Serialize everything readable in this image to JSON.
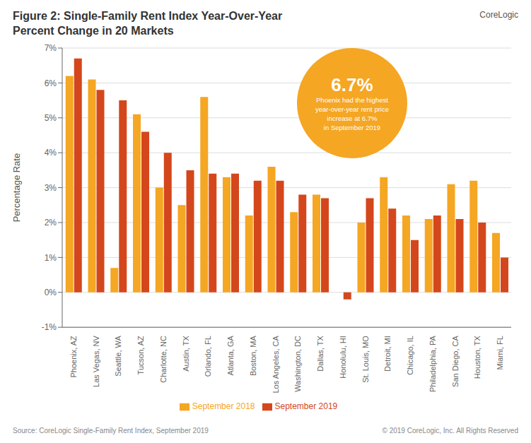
{
  "chart_data": {
    "type": "bar",
    "title": "Figure 2: Single-Family Rent Index Year-Over-Year",
    "subtitle": "Percent Change in 20 Markets",
    "y_label": "Percentage Rate",
    "categories": [
      "Phoenix, AZ",
      "Las Vegas, NV",
      "Seattle, WA",
      "Tucson, AZ",
      "Charlotte, NC",
      "Austin, TX",
      "Orlando, FL",
      "Atlanta, GA",
      "Boston, MA",
      "Los Angeles, CA",
      "Washington, DC",
      "Dallas, TX",
      "Honolulu, HI",
      "St. Louis, MO",
      "Detroit, MI",
      "Chicago, IL",
      "Philadelphia, PA",
      "San Diego, CA",
      "Houston, TX",
      "Miami, FL"
    ],
    "series": [
      {
        "name": "September 2018",
        "color": "#F5A623",
        "values": [
          6.2,
          6.1,
          0.7,
          5.1,
          3.0,
          2.5,
          5.6,
          3.3,
          2.2,
          3.6,
          2.3,
          2.8,
          0.0,
          2.0,
          3.3,
          2.2,
          2.1,
          3.1,
          3.2,
          1.7
        ]
      },
      {
        "name": "September 2019",
        "color": "#D4471C",
        "values": [
          6.7,
          5.8,
          5.5,
          4.6,
          4.0,
          3.5,
          3.4,
          3.4,
          3.2,
          3.2,
          2.8,
          2.7,
          -0.2,
          2.7,
          2.4,
          1.5,
          2.2,
          2.1,
          2.0,
          1.0
        ]
      }
    ],
    "ylim": [
      -1,
      7
    ],
    "yticks": [
      {
        "value": -1,
        "label": "-1%"
      },
      {
        "value": 0,
        "label": "0%"
      },
      {
        "value": 1,
        "label": "1%"
      },
      {
        "value": 2,
        "label": "2%"
      },
      {
        "value": 3,
        "label": "3%"
      },
      {
        "value": 4,
        "label": "4%"
      },
      {
        "value": 5,
        "label": "5%"
      },
      {
        "value": 6,
        "label": "6%"
      },
      {
        "value": 7,
        "label": "7%"
      }
    ],
    "grid": true,
    "legend": "bottom",
    "annotations": [
      "6.7%",
      "Phoenix had the highest\nyear-over-year rent price\nincrease at 6.7%\nin September 2019",
      "Source: CoreLogic Single-Family Rent Index, September 2019",
      "© 2019 CoreLogic, Inc. All Rights Reserved",
      "CoreLogic"
    ]
  }
}
